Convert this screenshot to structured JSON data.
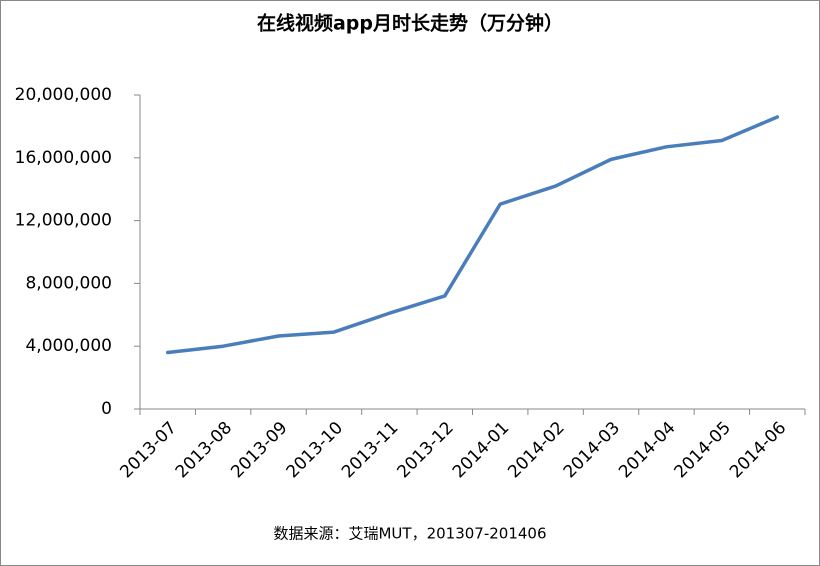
{
  "chart_data": {
    "type": "line",
    "title": "在线视频app月时长走势（万分钟）",
    "source": "数据来源：艾瑞MUT，201307-201406",
    "categories": [
      "2013-07",
      "2013-08",
      "2013-09",
      "2013-10",
      "2013-11",
      "2013-12",
      "2014-01",
      "2014-02",
      "2014-03",
      "2014-04",
      "2014-05",
      "2014-06"
    ],
    "series": [
      {
        "name": "在线视频app月时长",
        "color": "#4a7ebb",
        "values": [
          3600000,
          4000000,
          4650000,
          4900000,
          6100000,
          7200000,
          13050000,
          14200000,
          15900000,
          16700000,
          17100000,
          18600000
        ]
      }
    ],
    "ylim": [
      0,
      20000000
    ],
    "yticks": [
      0,
      {
        "value": 4000000,
        "label": "4,000,000"
      },
      {
        "value": 8000000,
        "label": "8,000,000"
      },
      {
        "value": 12000000,
        "label": "12,000,000"
      },
      {
        "value": 16000000,
        "label": "16,000,000"
      },
      {
        "value": 20000000,
        "label": "20,000,000"
      }
    ],
    "grid": false
  }
}
